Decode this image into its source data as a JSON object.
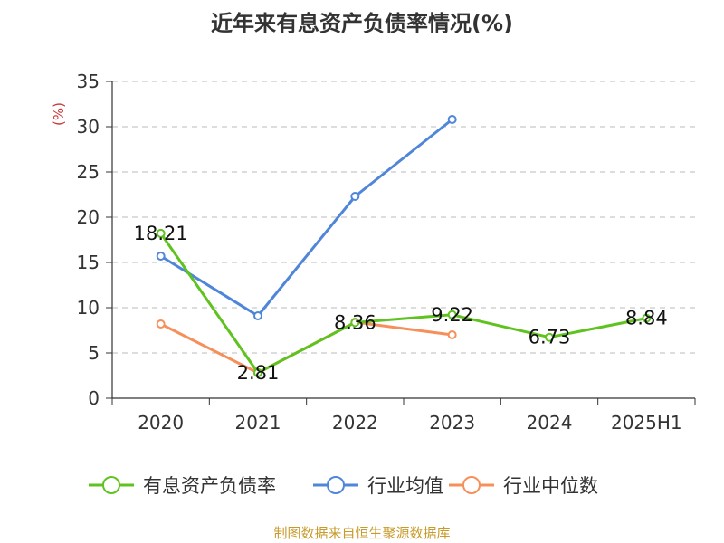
{
  "title": "近年来有息资产负债率情况(%)",
  "footer": "制图数据来自恒生聚源数据库",
  "chart_data": {
    "type": "line",
    "title": "近年来有息资产负债率情况(%)",
    "ylabel": "(%)",
    "xlabel": "",
    "categories": [
      "2020",
      "2021",
      "2022",
      "2023",
      "2024",
      "2025H1"
    ],
    "ylim": [
      0,
      35
    ],
    "yticks": [
      0,
      5,
      10,
      15,
      20,
      25,
      30,
      35
    ],
    "grid": true,
    "legend_position": "bottom",
    "series": [
      {
        "name": "有息资产负债率",
        "color": "#5fc31f",
        "values": [
          18.21,
          2.81,
          8.36,
          9.22,
          6.73,
          8.84
        ],
        "labels": [
          "18.21",
          "2.81",
          "8.36",
          "9.22",
          "6.73",
          "8.84"
        ]
      },
      {
        "name": "行业均值",
        "color": "#4f86d9",
        "values": [
          15.7,
          9.1,
          22.3,
          30.8,
          null,
          null
        ]
      },
      {
        "name": "行业中位数",
        "color": "#f5905a",
        "values": [
          8.2,
          2.8,
          8.4,
          7.0,
          null,
          null
        ]
      }
    ]
  }
}
